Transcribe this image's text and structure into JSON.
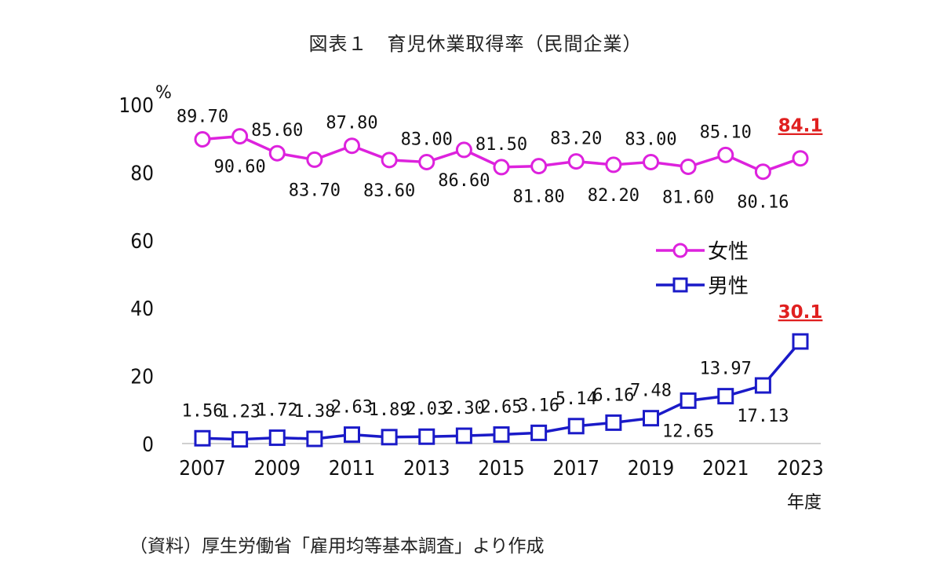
{
  "title": "図表１　育児休業取得率（民間企業）",
  "source": "（資料）厚生労働省「雇用均等基本調査」より作成",
  "chart_data": {
    "type": "line",
    "title": "図表１　育児休業取得率（民間企業）",
    "x": [
      2007,
      2008,
      2009,
      2010,
      2011,
      2012,
      2013,
      2014,
      2015,
      2016,
      2017,
      2018,
      2019,
      2020,
      2021,
      2022,
      2023
    ],
    "x_tick_labels": [
      "2007",
      "2009",
      "2011",
      "2013",
      "2015",
      "2017",
      "2019",
      "2021",
      "2023"
    ],
    "xlabel": "年度",
    "ylabel": "%",
    "y_tick_labels": [
      "0",
      "20",
      "40",
      "60",
      "80",
      "100"
    ],
    "ylim": [
      0,
      100
    ],
    "grid": false,
    "legend_position": "right",
    "series": [
      {
        "name": "女性",
        "marker": "circle",
        "color": "#dd22dd",
        "values": [
          89.7,
          90.6,
          85.6,
          83.7,
          87.8,
          83.6,
          83.0,
          86.6,
          81.5,
          81.8,
          83.2,
          82.2,
          83.0,
          81.6,
          85.1,
          80.16,
          84.1
        ],
        "labels": [
          "89.70",
          "90.60",
          "85.60",
          "83.70",
          "87.80",
          "83.60",
          "83.00",
          "86.60",
          "81.50",
          "81.80",
          "83.20",
          "82.20",
          "83.00",
          "81.60",
          "85.10",
          "80.16",
          "84.1"
        ],
        "label_pos": [
          "above",
          "below",
          "above",
          "below",
          "above",
          "below",
          "above",
          "below",
          "above",
          "below",
          "above",
          "below",
          "above",
          "below",
          "above",
          "below",
          "above"
        ]
      },
      {
        "name": "男性",
        "marker": "square",
        "color": "#1a1ac8",
        "values": [
          1.56,
          1.23,
          1.72,
          1.38,
          2.63,
          1.89,
          2.03,
          2.3,
          2.65,
          3.16,
          5.14,
          6.16,
          7.48,
          12.65,
          13.97,
          17.13,
          30.1
        ],
        "labels": [
          "1.56",
          "1.23",
          "1.72",
          "1.38",
          "2.63",
          "1.89",
          "2.03",
          "2.30",
          "2.65",
          "3.16",
          "5.14",
          "6.16",
          "7.48",
          "12.65",
          "13.97",
          "17.13",
          "30.1"
        ],
        "label_pos": [
          "above",
          "above",
          "above",
          "above",
          "above",
          "above",
          "above",
          "above",
          "above",
          "above",
          "above",
          "above",
          "above",
          "below",
          "above",
          "below",
          "above"
        ]
      }
    ],
    "highlight_color": "#e02020"
  }
}
